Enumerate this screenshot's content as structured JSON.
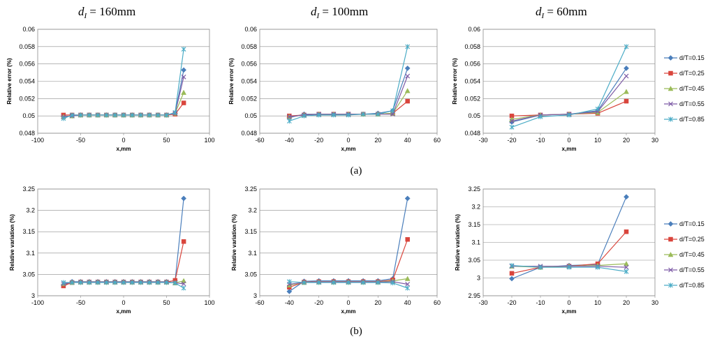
{
  "headers": {
    "col1": {
      "symbol": "d",
      "sub": "I",
      "value": " = 160mm"
    },
    "col2": {
      "symbol": "d",
      "sub": "I",
      "value": " = 100mm"
    },
    "col3": {
      "symbol": "d",
      "sub": "I",
      "value": " = 60mm"
    }
  },
  "labels": {
    "a": "(a)",
    "b": "(b)"
  },
  "series_colors": [
    "#4a7ebb",
    "#d9453c",
    "#9bbb59",
    "#7d5ba6",
    "#4bacc6"
  ],
  "series_markers": [
    "diamond",
    "square",
    "triangle",
    "x",
    "star"
  ],
  "legend": [
    "d/T=0.15",
    "d/T=0.25",
    "d/T=0.45",
    "d/T=0.55",
    "d/T=0.85"
  ],
  "chart_data": [
    {
      "id": "a1",
      "type": "line",
      "row": "a",
      "column": 1,
      "xlabel": "x,mm",
      "ylabel": "Relative error (%)",
      "xlim": [
        -100,
        100
      ],
      "xticks": [
        -100,
        -50,
        0,
        50,
        100
      ],
      "xtick_labels": [
        "-100",
        "-50",
        "0",
        "50",
        "100"
      ],
      "ylim": [
        0.048,
        0.06
      ],
      "yticks": [
        0.048,
        0.05,
        0.052,
        0.054,
        0.056,
        0.058,
        0.06
      ],
      "ytick_labels": [
        "0.048",
        "0.05",
        "0.052",
        "0.054",
        "0.056",
        "0.058",
        "0.06"
      ],
      "x": [
        -70,
        -60,
        -50,
        -40,
        -30,
        -20,
        -10,
        0,
        10,
        20,
        30,
        40,
        50,
        60,
        70
      ],
      "series": [
        {
          "name": "d/T=0.15",
          "values": [
            0.0499,
            0.05,
            0.0501,
            0.0501,
            0.0501,
            0.0501,
            0.0501,
            0.0501,
            0.0501,
            0.0501,
            0.0501,
            0.0501,
            0.0501,
            0.0503,
            0.0553
          ]
        },
        {
          "name": "d/T=0.25",
          "values": [
            0.0501,
            0.0501,
            0.0501,
            0.0501,
            0.0501,
            0.0501,
            0.0501,
            0.0501,
            0.0501,
            0.0501,
            0.0501,
            0.0501,
            0.0501,
            0.0502,
            0.0515
          ]
        },
        {
          "name": "d/T=0.45",
          "values": [
            0.0499,
            0.05,
            0.0501,
            0.0501,
            0.0501,
            0.0501,
            0.0501,
            0.0501,
            0.0501,
            0.0501,
            0.0501,
            0.0501,
            0.0501,
            0.0503,
            0.0527
          ]
        },
        {
          "name": "d/T=0.55",
          "values": [
            0.0499,
            0.05,
            0.0501,
            0.0501,
            0.0501,
            0.0501,
            0.0501,
            0.0501,
            0.0501,
            0.0501,
            0.0501,
            0.0501,
            0.0501,
            0.0503,
            0.0545
          ]
        },
        {
          "name": "d/T=0.85",
          "values": [
            0.0497,
            0.0501,
            0.0501,
            0.0501,
            0.0501,
            0.0501,
            0.0501,
            0.0501,
            0.0501,
            0.0501,
            0.0501,
            0.0501,
            0.0501,
            0.0504,
            0.0577
          ]
        }
      ]
    },
    {
      "id": "a2",
      "type": "line",
      "row": "a",
      "column": 2,
      "xlabel": "x,mm",
      "ylabel": "Relative error (%)",
      "xlim": [
        -60,
        60
      ],
      "xticks": [
        -60,
        -40,
        -20,
        0,
        20,
        40,
        60
      ],
      "xtick_labels": [
        "-60",
        "-40",
        "-20",
        "0",
        "20",
        "40",
        "60"
      ],
      "ylim": [
        0.048,
        0.06
      ],
      "yticks": [
        0.048,
        0.05,
        0.052,
        0.054,
        0.056,
        0.058,
        0.06
      ],
      "ytick_labels": [
        "0.048",
        "0.05",
        "0.052",
        "0.054",
        "0.056",
        "0.058",
        "0.06"
      ],
      "x": [
        -40,
        -30,
        -20,
        -10,
        0,
        10,
        20,
        30,
        40
      ],
      "series": [
        {
          "name": "d/T=0.15",
          "values": [
            0.0498,
            0.0502,
            0.0502,
            0.0502,
            0.0502,
            0.0502,
            0.0503,
            0.0506,
            0.0555
          ]
        },
        {
          "name": "d/T=0.25",
          "values": [
            0.05,
            0.0501,
            0.0502,
            0.0502,
            0.0502,
            0.0502,
            0.0502,
            0.0503,
            0.0517
          ]
        },
        {
          "name": "d/T=0.45",
          "values": [
            0.0499,
            0.0501,
            0.0502,
            0.0502,
            0.0502,
            0.0502,
            0.0502,
            0.0503,
            0.0529
          ]
        },
        {
          "name": "d/T=0.55",
          "values": [
            0.0499,
            0.0501,
            0.0502,
            0.0502,
            0.0502,
            0.0502,
            0.0502,
            0.0502,
            0.0546
          ]
        },
        {
          "name": "d/T=0.85",
          "values": [
            0.0494,
            0.05,
            0.0501,
            0.0501,
            0.0501,
            0.0502,
            0.0502,
            0.0506,
            0.058
          ]
        }
      ]
    },
    {
      "id": "a3",
      "type": "line",
      "row": "a",
      "column": 3,
      "xlabel": "x,mm",
      "ylabel": "Relative error (%)",
      "xlim": [
        -30,
        30
      ],
      "xticks": [
        -30,
        -20,
        -10,
        0,
        10,
        20,
        30
      ],
      "xtick_labels": [
        "-30",
        "-20",
        "-10",
        "0",
        "10",
        "20",
        "30"
      ],
      "ylim": [
        0.048,
        0.06
      ],
      "yticks": [
        0.048,
        0.05,
        0.052,
        0.054,
        0.056,
        0.058,
        0.06
      ],
      "ytick_labels": [
        "0.048",
        "0.05",
        "0.052",
        "0.054",
        "0.056",
        "0.058",
        "0.06"
      ],
      "x": [
        -20,
        -10,
        0,
        10,
        20
      ],
      "series": [
        {
          "name": "d/T=0.15",
          "values": [
            0.0493,
            0.0501,
            0.0502,
            0.0506,
            0.0555
          ]
        },
        {
          "name": "d/T=0.25",
          "values": [
            0.05,
            0.0501,
            0.0502,
            0.0503,
            0.0517
          ]
        },
        {
          "name": "d/T=0.45",
          "values": [
            0.0496,
            0.0501,
            0.0502,
            0.0504,
            0.0528
          ]
        },
        {
          "name": "d/T=0.55",
          "values": [
            0.0494,
            0.0501,
            0.0502,
            0.0505,
            0.0546
          ]
        },
        {
          "name": "d/T=0.85",
          "values": [
            0.0487,
            0.0499,
            0.0501,
            0.0508,
            0.058
          ]
        }
      ]
    },
    {
      "id": "b1",
      "type": "line",
      "row": "b",
      "column": 1,
      "xlabel": "x,mm",
      "ylabel": "Relative variation (%)",
      "xlim": [
        -100,
        100
      ],
      "xticks": [
        -100,
        -50,
        0,
        50,
        100
      ],
      "xtick_labels": [
        "-100",
        "-50",
        "0",
        "50",
        "100"
      ],
      "ylim": [
        3,
        3.25
      ],
      "yticks": [
        3,
        3.05,
        3.1,
        3.15,
        3.2,
        3.25
      ],
      "ytick_labels": [
        "3",
        "3.05",
        "3.1",
        "3.15",
        "3.2",
        "3.25"
      ],
      "x": [
        -70,
        -60,
        -50,
        -40,
        -30,
        -20,
        -10,
        0,
        10,
        20,
        30,
        40,
        50,
        60,
        70
      ],
      "series": [
        {
          "name": "d/T=0.15",
          "values": [
            3.025,
            3.033,
            3.033,
            3.033,
            3.033,
            3.033,
            3.033,
            3.033,
            3.033,
            3.033,
            3.033,
            3.033,
            3.033,
            3.035,
            3.228
          ]
        },
        {
          "name": "d/T=0.25",
          "values": [
            3.023,
            3.031,
            3.032,
            3.032,
            3.032,
            3.032,
            3.032,
            3.032,
            3.032,
            3.032,
            3.032,
            3.032,
            3.032,
            3.036,
            3.127
          ]
        },
        {
          "name": "d/T=0.45",
          "values": [
            3.028,
            3.031,
            3.032,
            3.032,
            3.032,
            3.032,
            3.032,
            3.032,
            3.032,
            3.032,
            3.032,
            3.032,
            3.032,
            3.03,
            3.035
          ]
        },
        {
          "name": "d/T=0.55",
          "values": [
            3.028,
            3.031,
            3.032,
            3.032,
            3.032,
            3.032,
            3.032,
            3.032,
            3.032,
            3.032,
            3.032,
            3.032,
            3.032,
            3.03,
            3.028
          ]
        },
        {
          "name": "d/T=0.85",
          "values": [
            3.031,
            3.031,
            3.031,
            3.031,
            3.031,
            3.031,
            3.031,
            3.031,
            3.031,
            3.031,
            3.031,
            3.031,
            3.031,
            3.03,
            3.018
          ]
        }
      ]
    },
    {
      "id": "b2",
      "type": "line",
      "row": "b",
      "column": 2,
      "xlabel": "x,mm",
      "ylabel": "Relative variation (%)",
      "xlim": [
        -60,
        60
      ],
      "xticks": [
        -60,
        -40,
        -20,
        0,
        20,
        40,
        60
      ],
      "xtick_labels": [
        "-60",
        "-40",
        "-20",
        "0",
        "20",
        "40",
        "60"
      ],
      "ylim": [
        3,
        3.25
      ],
      "yticks": [
        3,
        3.05,
        3.1,
        3.15,
        3.2,
        3.25
      ],
      "ytick_labels": [
        "3",
        "3.05",
        "3.1",
        "3.15",
        "3.2",
        "3.25"
      ],
      "x": [
        -40,
        -30,
        -20,
        -10,
        0,
        10,
        20,
        30,
        40
      ],
      "series": [
        {
          "name": "d/T=0.15",
          "values": [
            3.01,
            3.034,
            3.035,
            3.035,
            3.035,
            3.035,
            3.035,
            3.04,
            3.228
          ]
        },
        {
          "name": "d/T=0.25",
          "values": [
            3.02,
            3.032,
            3.033,
            3.033,
            3.033,
            3.033,
            3.033,
            3.037,
            3.132
          ]
        },
        {
          "name": "d/T=0.45",
          "values": [
            3.025,
            3.031,
            3.032,
            3.032,
            3.032,
            3.032,
            3.032,
            3.035,
            3.04
          ]
        },
        {
          "name": "d/T=0.55",
          "values": [
            3.027,
            3.031,
            3.032,
            3.032,
            3.032,
            3.032,
            3.032,
            3.033,
            3.027
          ]
        },
        {
          "name": "d/T=0.85",
          "values": [
            3.033,
            3.031,
            3.031,
            3.031,
            3.031,
            3.031,
            3.031,
            3.03,
            3.018
          ]
        }
      ]
    },
    {
      "id": "b3",
      "type": "line",
      "row": "b",
      "column": 3,
      "xlabel": "x,mm",
      "ylabel": "Relative variation (%)",
      "xlim": [
        -30,
        30
      ],
      "xticks": [
        -30,
        -20,
        -10,
        0,
        10,
        20,
        30
      ],
      "xtick_labels": [
        "-30",
        "-20",
        "-10",
        "0",
        "10",
        "20",
        "30"
      ],
      "ylim": [
        2.95,
        3.25
      ],
      "yticks": [
        2.95,
        3,
        3.05,
        3.1,
        3.15,
        3.2,
        3.25
      ],
      "ytick_labels": [
        "2.95",
        "3",
        "3.05",
        "3.1",
        "3.15",
        "3.2",
        "3.25"
      ],
      "x": [
        -20,
        -10,
        0,
        10,
        20
      ],
      "series": [
        {
          "name": "d/T=0.15",
          "values": [
            2.998,
            3.03,
            3.035,
            3.038,
            3.228
          ]
        },
        {
          "name": "d/T=0.25",
          "values": [
            3.013,
            3.03,
            3.033,
            3.04,
            3.13
          ]
        },
        {
          "name": "d/T=0.45",
          "values": [
            3.033,
            3.03,
            3.033,
            3.035,
            3.04
          ]
        },
        {
          "name": "d/T=0.55",
          "values": [
            3.033,
            3.033,
            3.033,
            3.033,
            3.03
          ]
        },
        {
          "name": "d/T=0.85",
          "values": [
            3.035,
            3.03,
            3.03,
            3.03,
            3.018
          ]
        }
      ]
    }
  ]
}
